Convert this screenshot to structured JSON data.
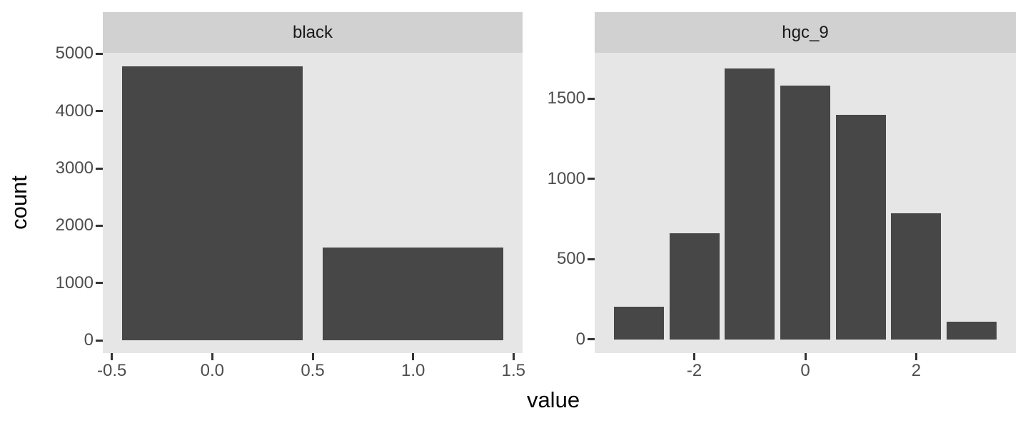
{
  "chart_data": {
    "type": "bar",
    "title": "",
    "xlabel": "value",
    "ylabel": "count",
    "legend": "none",
    "grid": false,
    "facets": [
      {
        "label": "black",
        "xlim": [
          -0.545,
          1.545
        ],
        "ylim": [
          -224,
          5018
        ],
        "bar_width": 0.9,
        "x_ticks": [
          {
            "v": -0.5,
            "label": "-0.5"
          },
          {
            "v": 0.0,
            "label": "0.0"
          },
          {
            "v": 0.5,
            "label": "0.5"
          },
          {
            "v": 1.0,
            "label": "1.0"
          },
          {
            "v": 1.5,
            "label": "1.5"
          }
        ],
        "y_ticks": [
          {
            "v": 0,
            "label": "0"
          },
          {
            "v": 1000,
            "label": "1000"
          },
          {
            "v": 2000,
            "label": "2000"
          },
          {
            "v": 3000,
            "label": "3000"
          },
          {
            "v": 4000,
            "label": "4000"
          },
          {
            "v": 5000,
            "label": "5000"
          }
        ],
        "bars": [
          {
            "x": 0,
            "count": 4780
          },
          {
            "x": 1,
            "count": 1620
          }
        ]
      },
      {
        "label": "hgc_9",
        "xlim": [
          -3.795,
          3.795
        ],
        "ylim": [
          -86,
          1786
        ],
        "bar_width": 0.9,
        "x_ticks": [
          {
            "v": -2,
            "label": "-2"
          },
          {
            "v": 0,
            "label": "0"
          },
          {
            "v": 2,
            "label": "2"
          }
        ],
        "y_ticks": [
          {
            "v": 0,
            "label": "0"
          },
          {
            "v": 500,
            "label": "500"
          },
          {
            "v": 1000,
            "label": "1000"
          },
          {
            "v": 1500,
            "label": "1500"
          }
        ],
        "bars": [
          {
            "x": -3,
            "count": 205
          },
          {
            "x": -2,
            "count": 660
          },
          {
            "x": -1,
            "count": 1690
          },
          {
            "x": 0,
            "count": 1580
          },
          {
            "x": 1,
            "count": 1400
          },
          {
            "x": 2,
            "count": 785
          },
          {
            "x": 3,
            "count": 110
          }
        ]
      }
    ],
    "colors": {
      "bar_fill": "#474747",
      "panel_background": "#E6E6E6",
      "strip_background": "#D1D1D1",
      "strip_text": "#1A1A1A",
      "axis_text": "#4D4D4D",
      "axis_title": "#000000",
      "tick_mark": "#333333",
      "figure_background": "#FFFFFF"
    }
  }
}
